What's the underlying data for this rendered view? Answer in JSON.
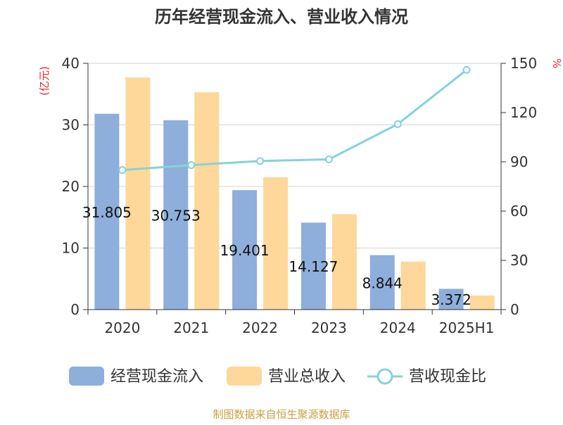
{
  "chart_data": {
    "type": "bar",
    "title": "历年经营现金流入、营业收入情况",
    "categories": [
      "2020",
      "2021",
      "2022",
      "2023",
      "2024",
      "2025H1"
    ],
    "ylabel": "(亿元)",
    "y2label": "%",
    "ylim": [
      0,
      40
    ],
    "y2lim": [
      0,
      150
    ],
    "yticks": [
      "0",
      "10",
      "20",
      "30",
      "40"
    ],
    "y2ticks": [
      "0",
      "30",
      "60",
      "90",
      "120",
      "150"
    ],
    "grid": true,
    "legend_position": "bottom",
    "series": [
      {
        "name": "经营现金流入",
        "type": "bar",
        "axis": "left",
        "color": "#8eaedb",
        "values": [
          31.805,
          30.753,
          19.401,
          14.127,
          8.844,
          3.372
        ],
        "labels": [
          "31.805",
          "30.753",
          "19.401",
          "14.127",
          "8.844",
          "3.372"
        ]
      },
      {
        "name": "营业总收入",
        "type": "bar",
        "axis": "left",
        "color": "#fdd89a",
        "values": [
          37.7,
          35.3,
          21.5,
          15.5,
          7.8,
          2.3
        ]
      },
      {
        "name": "营收现金比",
        "type": "line",
        "axis": "right",
        "color": "#86d3d6",
        "values": [
          85,
          88,
          90.5,
          91.5,
          113,
          146
        ]
      }
    ]
  },
  "colors": {
    "title": "#333333",
    "axis_label": "#e0262a",
    "axis": "#333333",
    "grid": "#d3d3d3",
    "source": "#c9a043"
  },
  "source_text": "制图数据来自恒生聚源数据库"
}
